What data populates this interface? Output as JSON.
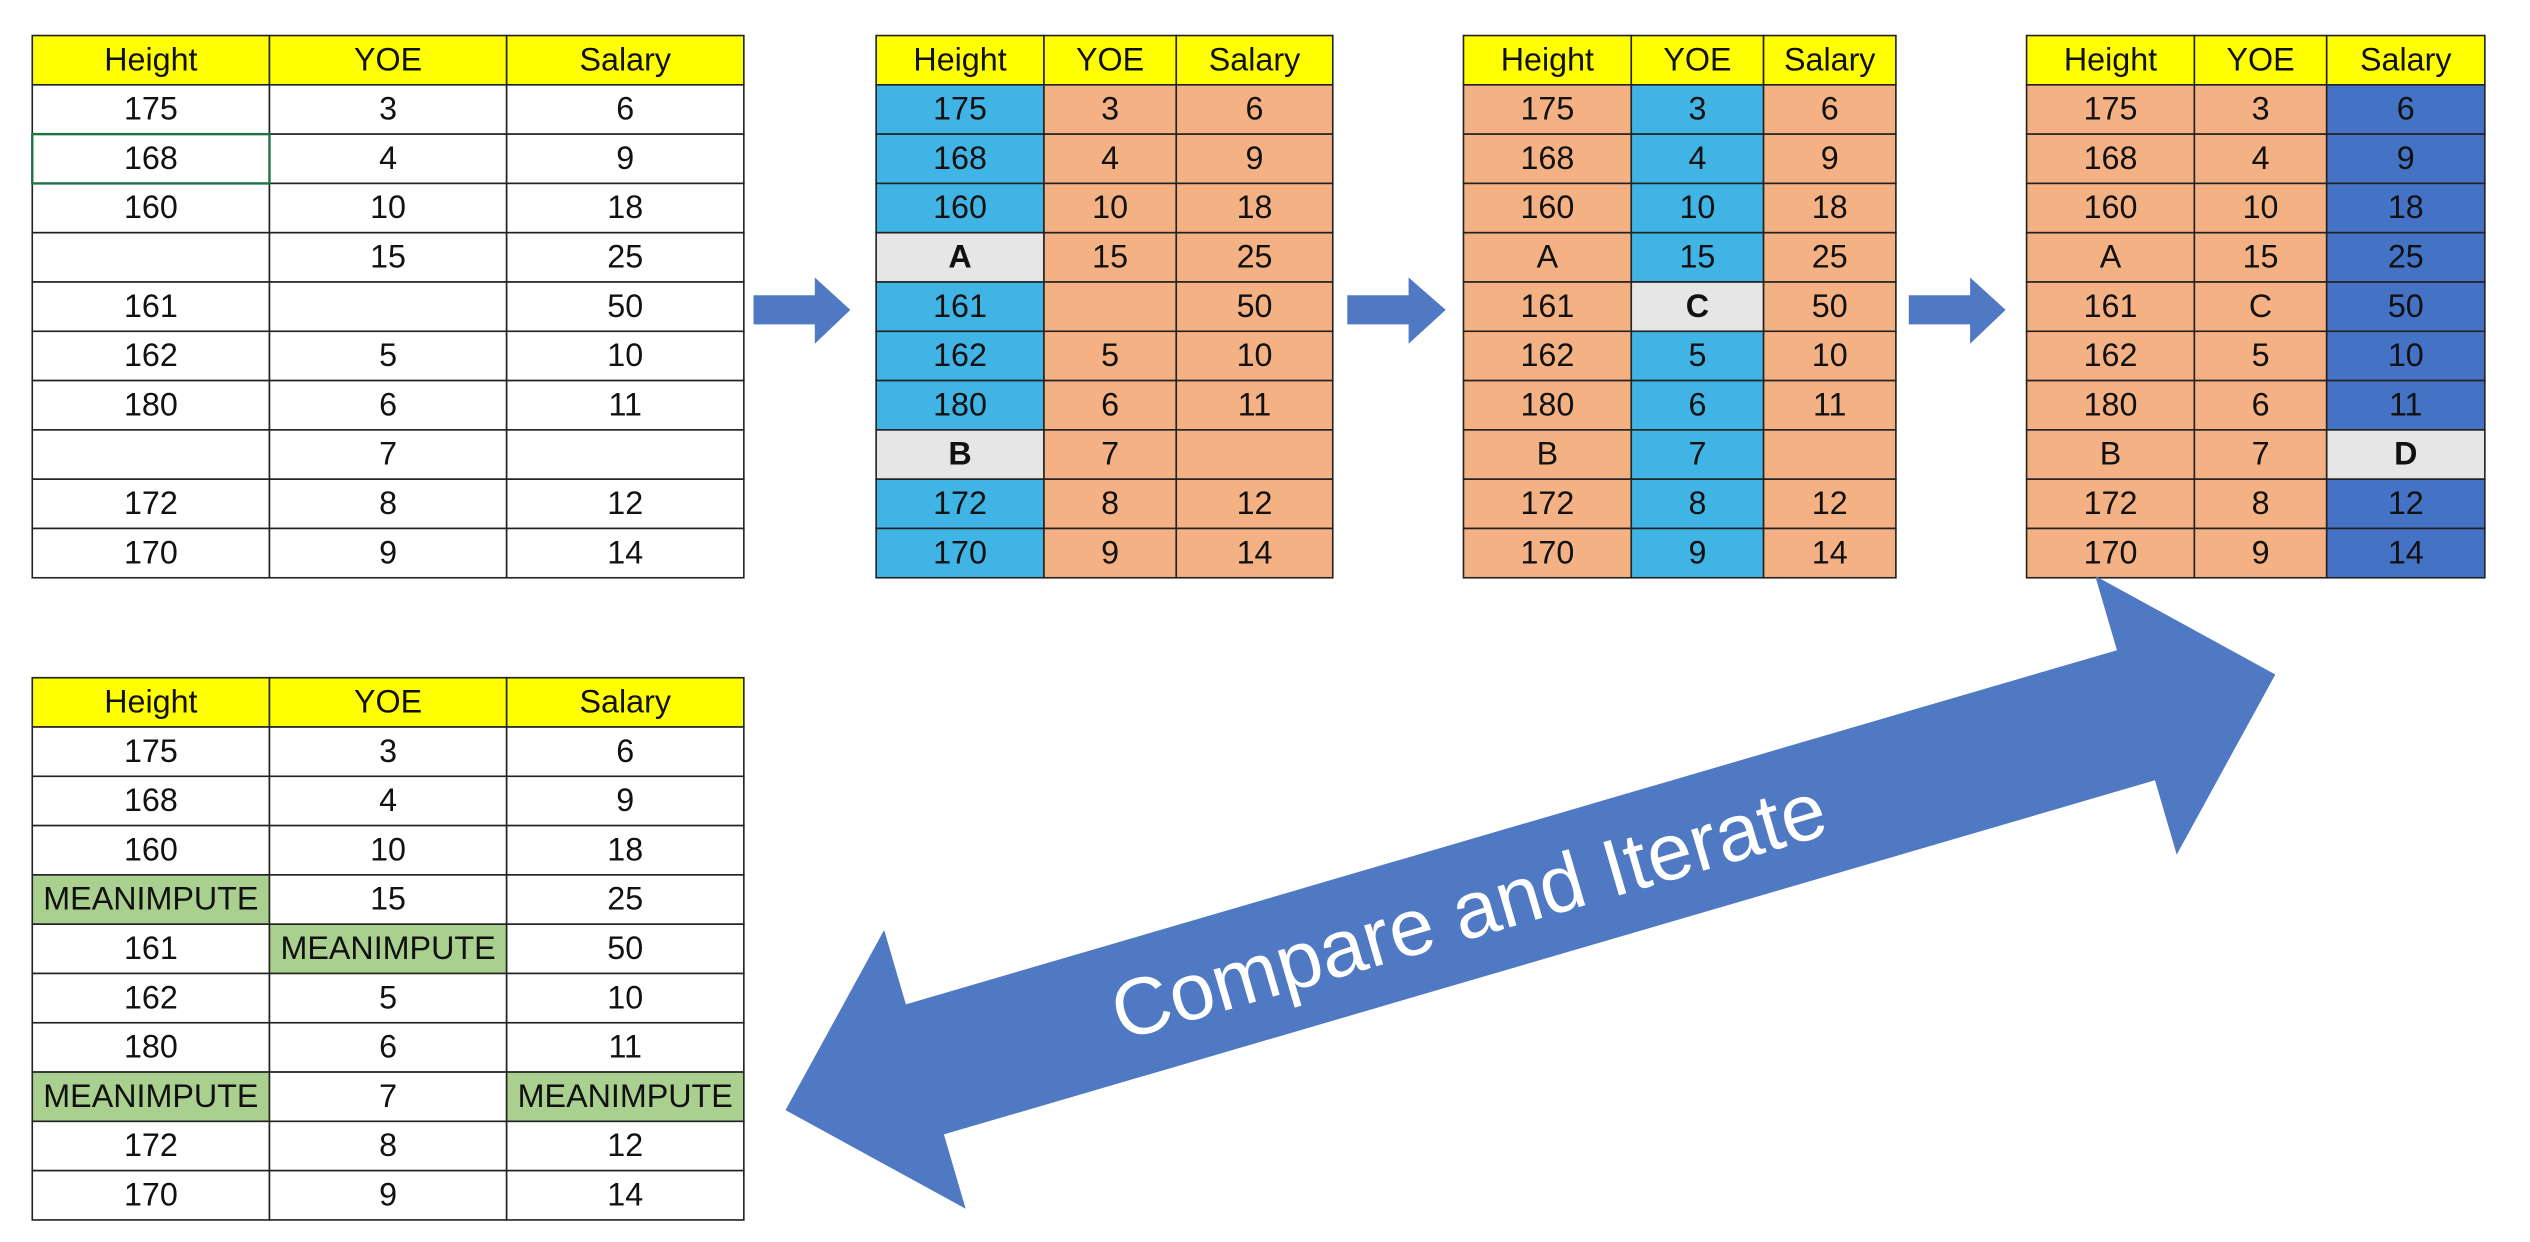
{
  "tables": [
    {
      "header": [
        "Height",
        "YOE",
        "Salary"
      ],
      "rows": [
        [
          175,
          3,
          6
        ],
        [
          168,
          4,
          9
        ],
        [
          160,
          10,
          18
        ],
        [
          null,
          15,
          25
        ],
        [
          161,
          null,
          50
        ],
        [
          162,
          5,
          10
        ],
        [
          180,
          6,
          11
        ],
        [
          null,
          7,
          null
        ],
        [
          172,
          8,
          12
        ],
        [
          170,
          9,
          14
        ]
      ]
    },
    {
      "header": [
        "Height",
        "YOE",
        "Salary"
      ],
      "rows": [
        [
          175,
          3,
          6
        ],
        [
          168,
          4,
          9
        ],
        [
          160,
          10,
          18
        ],
        [
          "A",
          15,
          25
        ],
        [
          161,
          null,
          50
        ],
        [
          162,
          5,
          10
        ],
        [
          180,
          6,
          11
        ],
        [
          "B",
          7,
          null
        ],
        [
          172,
          8,
          12
        ],
        [
          170,
          9,
          14
        ]
      ]
    },
    {
      "header": [
        "Height",
        "YOE",
        "Salary"
      ],
      "rows": [
        [
          175,
          3,
          6
        ],
        [
          168,
          4,
          9
        ],
        [
          160,
          10,
          18
        ],
        [
          "A",
          15,
          25
        ],
        [
          161,
          "C",
          50
        ],
        [
          162,
          5,
          10
        ],
        [
          180,
          6,
          11
        ],
        [
          "B",
          7,
          null
        ],
        [
          172,
          8,
          12
        ],
        [
          170,
          9,
          14
        ]
      ]
    },
    {
      "header": [
        "Height",
        "YOE",
        "Salary"
      ],
      "rows": [
        [
          175,
          3,
          6
        ],
        [
          168,
          4,
          9
        ],
        [
          160,
          10,
          18
        ],
        [
          "A",
          15,
          25
        ],
        [
          161,
          "C",
          50
        ],
        [
          162,
          5,
          10
        ],
        [
          180,
          6,
          11
        ],
        [
          "B",
          7,
          "D"
        ],
        [
          172,
          8,
          12
        ],
        [
          170,
          9,
          14
        ]
      ]
    },
    {
      "header": [
        "Height",
        "YOE",
        "Salary"
      ],
      "rows": [
        [
          175,
          3,
          6
        ],
        [
          168,
          4,
          9
        ],
        [
          160,
          10,
          18
        ],
        [
          "MEANIMPUTE",
          15,
          25
        ],
        [
          161,
          "MEANIMPUTE",
          50
        ],
        [
          162,
          5,
          10
        ],
        [
          180,
          6,
          11
        ],
        [
          "MEANIMPUTE",
          7,
          "MEANIMPUTE"
        ],
        [
          172,
          8,
          12
        ],
        [
          170,
          9,
          14
        ]
      ]
    }
  ],
  "arrow_label": "Compare and Iterate"
}
